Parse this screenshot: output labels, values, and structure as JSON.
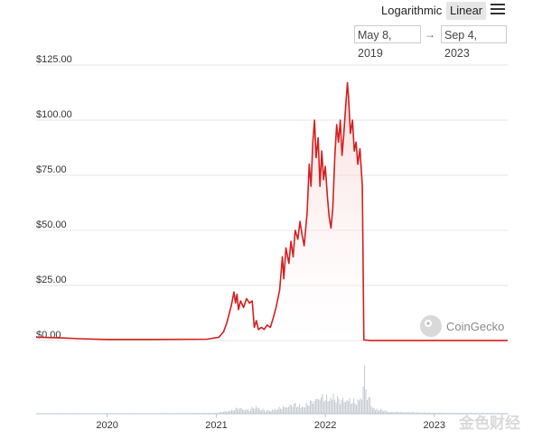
{
  "toolbar": {
    "scale_options": [
      "Logarithmic",
      "Linear"
    ],
    "selected_scale": "Linear",
    "menu_icon": "hamburger-icon"
  },
  "date_range": {
    "from": "May 8, 2019",
    "to": "Sep 4, 2023",
    "arrow": "→"
  },
  "watermark": {
    "brand": "CoinGecko",
    "logo_icon": "gecko-logo-icon"
  },
  "corner_mark": "金色财经",
  "colors": {
    "price_line": "#d41f1f",
    "area_fill_top": "#f5c0c0",
    "volume": "#c9cdd3",
    "grid": "#e6e6e6"
  },
  "chart_data": {
    "type": "line",
    "y_ticks": [
      "$0.00",
      "$25.00",
      "$50.00",
      "$75.00",
      "$100.00",
      "$125.00"
    ],
    "ylim": [
      0,
      125
    ],
    "x_ticks": [
      "2020",
      "2021",
      "2022",
      "2023"
    ],
    "xlim": [
      "2019-05-08",
      "2023-09-04"
    ],
    "grid": true,
    "series": [
      {
        "values": [
          [
            "2019-05-08",
            1.5
          ],
          [
            "2019-08-01",
            1.2
          ],
          [
            "2019-10-01",
            0.8
          ],
          [
            "2020-01-01",
            0.5
          ],
          [
            "2020-06-01",
            0.5
          ],
          [
            "2020-12-01",
            0.6
          ],
          [
            "2021-01-10",
            1.5
          ],
          [
            "2021-01-25",
            4
          ],
          [
            "2021-02-05",
            8
          ],
          [
            "2021-02-20",
            16
          ],
          [
            "2021-03-01",
            22
          ],
          [
            "2021-03-06",
            17
          ],
          [
            "2021-03-11",
            21
          ],
          [
            "2021-03-16",
            14
          ],
          [
            "2021-03-23",
            18
          ],
          [
            "2021-04-02",
            15
          ],
          [
            "2021-04-12",
            19
          ],
          [
            "2021-04-22",
            17
          ],
          [
            "2021-05-01",
            18
          ],
          [
            "2021-05-08",
            6
          ],
          [
            "2021-05-15",
            9
          ],
          [
            "2021-05-22",
            5
          ],
          [
            "2021-06-01",
            6
          ],
          [
            "2021-06-10",
            5
          ],
          [
            "2021-06-20",
            7
          ],
          [
            "2021-07-01",
            6
          ],
          [
            "2021-07-10",
            10
          ],
          [
            "2021-07-20",
            15
          ],
          [
            "2021-08-01",
            23
          ],
          [
            "2021-08-10",
            38
          ],
          [
            "2021-08-15",
            28
          ],
          [
            "2021-08-22",
            42
          ],
          [
            "2021-09-01",
            35
          ],
          [
            "2021-09-08",
            45
          ],
          [
            "2021-09-15",
            38
          ],
          [
            "2021-09-22",
            50
          ],
          [
            "2021-10-01",
            46
          ],
          [
            "2021-10-08",
            54
          ],
          [
            "2021-10-15",
            48
          ],
          [
            "2021-10-22",
            43
          ],
          [
            "2021-11-01",
            58
          ],
          [
            "2021-11-08",
            80
          ],
          [
            "2021-11-14",
            70
          ],
          [
            "2021-11-20",
            90
          ],
          [
            "2021-11-26",
            100
          ],
          [
            "2021-12-01",
            83
          ],
          [
            "2021-12-08",
            92
          ],
          [
            "2021-12-14",
            70
          ],
          [
            "2021-12-20",
            86
          ],
          [
            "2021-12-26",
            73
          ],
          [
            "2022-01-01",
            79
          ],
          [
            "2022-01-08",
            65
          ],
          [
            "2022-01-14",
            56
          ],
          [
            "2022-01-20",
            51
          ],
          [
            "2022-01-26",
            60
          ],
          [
            "2022-02-02",
            84
          ],
          [
            "2022-02-08",
            98
          ],
          [
            "2022-02-14",
            90
          ],
          [
            "2022-02-20",
            100
          ],
          [
            "2022-02-26",
            84
          ],
          [
            "2022-03-03",
            92
          ],
          [
            "2022-03-10",
            106
          ],
          [
            "2022-03-16",
            117
          ],
          [
            "2022-03-20",
            110
          ],
          [
            "2022-03-26",
            94
          ],
          [
            "2022-04-02",
            100
          ],
          [
            "2022-04-08",
            86
          ],
          [
            "2022-04-14",
            90
          ],
          [
            "2022-04-20",
            80
          ],
          [
            "2022-04-27",
            87
          ],
          [
            "2022-05-05",
            70
          ],
          [
            "2022-05-10",
            0.3
          ],
          [
            "2022-06-01",
            0.05
          ],
          [
            "2023-09-04",
            0.05
          ]
        ]
      }
    ],
    "volume": {
      "values": [
        [
          "2019-05-08",
          0.2
        ],
        [
          "2020-06-01",
          0.2
        ],
        [
          "2021-01-01",
          0.4
        ],
        [
          "2021-02-20",
          2
        ],
        [
          "2021-03-15",
          3
        ],
        [
          "2021-04-20",
          2
        ],
        [
          "2021-05-10",
          4
        ],
        [
          "2021-06-15",
          1.5
        ],
        [
          "2021-08-01",
          3
        ],
        [
          "2021-09-15",
          5
        ],
        [
          "2021-10-20",
          4
        ],
        [
          "2021-11-20",
          7
        ],
        [
          "2021-12-10",
          9
        ],
        [
          "2022-01-10",
          8
        ],
        [
          "2022-01-25",
          10
        ],
        [
          "2022-02-15",
          7
        ],
        [
          "2022-03-10",
          8
        ],
        [
          "2022-04-10",
          6
        ],
        [
          "2022-05-01",
          9
        ],
        [
          "2022-05-10",
          25
        ],
        [
          "2022-05-15",
          12
        ],
        [
          "2022-06-10",
          3
        ],
        [
          "2022-08-01",
          1
        ],
        [
          "2023-01-01",
          0.5
        ],
        [
          "2023-09-04",
          0.3
        ]
      ]
    }
  }
}
